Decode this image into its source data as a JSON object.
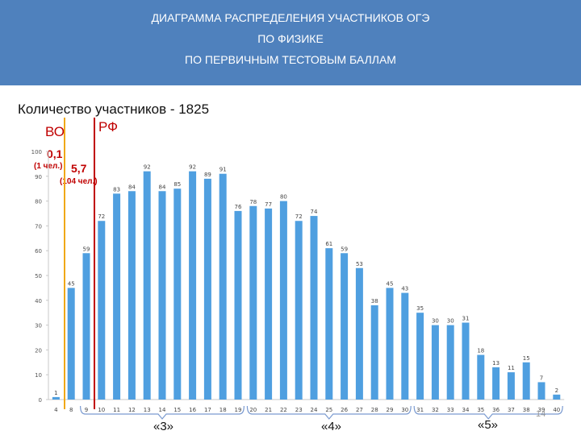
{
  "header": {
    "title_lines": [
      "ДИАГРАММА РАСПРЕДЕЛЕНИЯ УЧАСТНИКОВ ОГЭ",
      "ПО ФИЗИКЕ",
      "ПО ПЕРВИЧНЫМ ТЕСТОВЫМ БАЛЛАМ"
    ]
  },
  "subtitle": "Количество участников - 1825",
  "reference_lines": {
    "vo_label": "ВО",
    "rf_label": "РФ",
    "vo_color": "#f0a818",
    "rf_color": "#c00000"
  },
  "annotations": {
    "vo_value": "0,1",
    "vo_people": "(1 чел.)",
    "rf_value": "5,7",
    "rf_people": "(104 чел.)"
  },
  "grades": {
    "g3": "«3»",
    "g4": "«4»",
    "g5": "«5»"
  },
  "page_number": "14",
  "colors": {
    "header_bg": "#4f81bd",
    "bar": "#4f9fe0",
    "bracket": "#7a9ad0"
  },
  "chart_data": {
    "type": "bar",
    "categories": [
      "4",
      "8",
      "9",
      "10",
      "11",
      "12",
      "13",
      "14",
      "15",
      "16",
      "17",
      "18",
      "19",
      "20",
      "21",
      "22",
      "23",
      "24",
      "25",
      "26",
      "27",
      "28",
      "29",
      "30",
      "31",
      "32",
      "33",
      "34",
      "35",
      "36",
      "37",
      "38",
      "39",
      "40"
    ],
    "values": [
      1,
      45,
      59,
      72,
      83,
      84,
      92,
      84,
      85,
      92,
      89,
      91,
      76,
      78,
      77,
      80,
      72,
      74,
      61,
      59,
      53,
      38,
      45,
      43,
      35,
      30,
      30,
      31,
      18,
      13,
      11,
      15,
      7,
      2
    ],
    "yticks": [
      0,
      10,
      20,
      30,
      40,
      50,
      60,
      70,
      80,
      90,
      100
    ],
    "ylim": [
      0,
      100
    ],
    "grid": false,
    "xlabel": "",
    "ylabel": ""
  }
}
